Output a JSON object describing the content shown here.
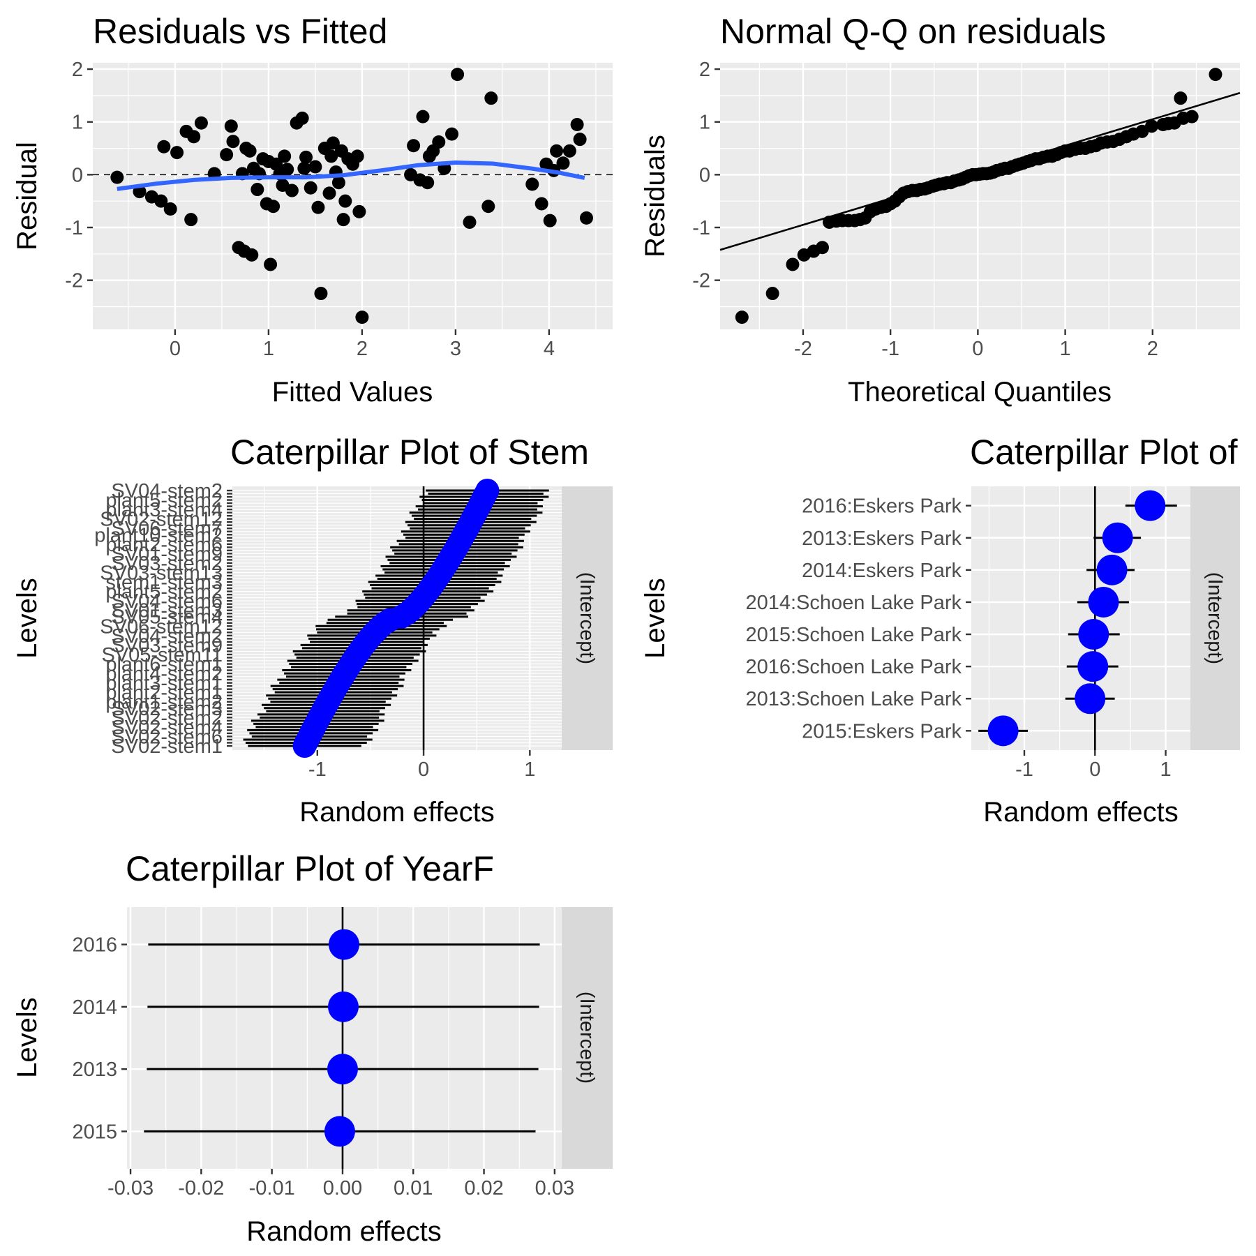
{
  "chart_data": [
    {
      "id": "residuals",
      "type": "scatter",
      "title": "Residuals vs Fitted",
      "xlabel": "Fitted Values",
      "ylabel": "Residual",
      "xlim": [
        -0.88,
        4.68
      ],
      "ylim": [
        -2.93,
        2.12
      ],
      "xticks": [
        0,
        1,
        2,
        3,
        4
      ],
      "xtick_labels": [
        "0",
        "1",
        "2",
        "3",
        "4"
      ],
      "yticks": [
        -2,
        -1,
        0,
        1,
        2
      ],
      "ytick_labels": [
        "-2",
        "-1",
        "0",
        "1",
        "2"
      ],
      "grid": true,
      "reference_line": {
        "y": 0,
        "style": "dashed",
        "color": "#000000"
      },
      "smooth": {
        "color": "#3366FF",
        "x": [
          -0.62,
          -0.2,
          0.2,
          0.6,
          1.0,
          1.4,
          1.8,
          2.2,
          2.6,
          3.0,
          3.4,
          3.8,
          4.1,
          4.38
        ],
        "y": [
          -0.27,
          -0.17,
          -0.1,
          -0.06,
          -0.05,
          -0.05,
          -0.01,
          0.08,
          0.18,
          0.23,
          0.21,
          0.12,
          0.04,
          -0.06
        ]
      },
      "points": [
        [
          -0.62,
          -0.05
        ],
        [
          -0.38,
          -0.32
        ],
        [
          -0.25,
          -0.42
        ],
        [
          -0.15,
          -0.5
        ],
        [
          -0.12,
          0.53
        ],
        [
          -0.05,
          -0.65
        ],
        [
          0.02,
          0.42
        ],
        [
          0.12,
          0.82
        ],
        [
          0.17,
          -0.85
        ],
        [
          0.2,
          0.72
        ],
        [
          0.28,
          0.98
        ],
        [
          0.42,
          0.02
        ],
        [
          0.55,
          0.38
        ],
        [
          0.6,
          0.92
        ],
        [
          0.62,
          0.63
        ],
        [
          0.68,
          -1.38
        ],
        [
          0.72,
          0.02
        ],
        [
          0.74,
          -1.45
        ],
        [
          0.76,
          0.5
        ],
        [
          0.8,
          0.45
        ],
        [
          0.82,
          -1.52
        ],
        [
          0.84,
          0.12
        ],
        [
          0.88,
          -0.28
        ],
        [
          0.9,
          0.02
        ],
        [
          0.94,
          0.3
        ],
        [
          0.98,
          -0.55
        ],
        [
          1.0,
          0.25
        ],
        [
          1.02,
          -1.7
        ],
        [
          1.05,
          -0.6
        ],
        [
          1.08,
          0.2
        ],
        [
          1.12,
          0.02
        ],
        [
          1.15,
          -0.2
        ],
        [
          1.17,
          0.35
        ],
        [
          1.2,
          0.1
        ],
        [
          1.25,
          -0.3
        ],
        [
          1.3,
          0.98
        ],
        [
          1.36,
          1.07
        ],
        [
          1.38,
          0.12
        ],
        [
          1.4,
          0.33
        ],
        [
          1.45,
          -0.25
        ],
        [
          1.5,
          0.15
        ],
        [
          1.53,
          -0.62
        ],
        [
          1.56,
          -2.25
        ],
        [
          1.6,
          0.5
        ],
        [
          1.65,
          -0.35
        ],
        [
          1.67,
          0.35
        ],
        [
          1.69,
          0.6
        ],
        [
          1.72,
          0.05
        ],
        [
          1.75,
          -0.15
        ],
        [
          1.78,
          0.45
        ],
        [
          1.8,
          -0.85
        ],
        [
          1.82,
          -0.5
        ],
        [
          1.85,
          0.3
        ],
        [
          1.9,
          0.2
        ],
        [
          1.95,
          0.35
        ],
        [
          1.97,
          -0.7
        ],
        [
          2.0,
          -2.7
        ],
        [
          2.52,
          0.0
        ],
        [
          2.55,
          0.55
        ],
        [
          2.62,
          -0.1
        ],
        [
          2.65,
          1.1
        ],
        [
          2.7,
          -0.15
        ],
        [
          2.72,
          0.35
        ],
        [
          2.76,
          0.45
        ],
        [
          2.82,
          0.62
        ],
        [
          2.88,
          0.12
        ],
        [
          2.96,
          0.77
        ],
        [
          3.02,
          1.9
        ],
        [
          3.15,
          -0.9
        ],
        [
          3.35,
          -0.6
        ],
        [
          3.38,
          1.45
        ],
        [
          3.82,
          -0.18
        ],
        [
          3.92,
          -0.55
        ],
        [
          3.97,
          0.2
        ],
        [
          4.01,
          -0.87
        ],
        [
          4.05,
          0.08
        ],
        [
          4.08,
          0.45
        ],
        [
          4.15,
          0.22
        ],
        [
          4.22,
          0.45
        ],
        [
          4.3,
          0.95
        ],
        [
          4.33,
          0.67
        ],
        [
          4.4,
          -0.82
        ]
      ]
    },
    {
      "id": "qq",
      "type": "scatter",
      "title": "Normal Q-Q on residuals",
      "xlabel": "Theoretical Quantiles",
      "ylabel": "Residuals",
      "xlim": [
        -2.95,
        3.0
      ],
      "ylim": [
        -2.93,
        2.12
      ],
      "xticks": [
        -2,
        -1,
        0,
        1,
        2
      ],
      "xtick_labels": [
        "-2",
        "-1",
        "0",
        "1",
        "2"
      ],
      "yticks": [
        -2,
        -1,
        0,
        1,
        2
      ],
      "ytick_labels": [
        "-2",
        "-1",
        "0",
        "1",
        "2"
      ],
      "grid": true,
      "reference_line": {
        "slope": 0.5,
        "intercept": 0.05,
        "color": "#000000"
      },
      "points": [
        [
          -2.7,
          -2.7
        ],
        [
          -2.35,
          -2.25
        ],
        [
          -2.12,
          -1.7
        ],
        [
          -1.99,
          -1.52
        ],
        [
          -1.88,
          -1.45
        ],
        [
          -1.78,
          -1.38
        ],
        [
          -1.7,
          -0.9
        ],
        [
          -1.62,
          -0.88
        ],
        [
          -1.55,
          -0.87
        ],
        [
          -1.48,
          -0.87
        ],
        [
          -1.41,
          -0.87
        ],
        [
          -1.35,
          -0.85
        ],
        [
          -1.29,
          -0.82
        ],
        [
          -1.23,
          -0.7
        ],
        [
          -1.17,
          -0.65
        ],
        [
          -1.11,
          -0.62
        ],
        [
          -1.05,
          -0.6
        ],
        [
          -1.0,
          -0.55
        ],
        [
          -0.95,
          -0.5
        ],
        [
          -0.9,
          -0.42
        ],
        [
          -0.85,
          -0.35
        ],
        [
          -0.8,
          -0.32
        ],
        [
          -0.75,
          -0.3
        ],
        [
          -0.7,
          -0.3
        ],
        [
          -0.66,
          -0.28
        ],
        [
          -0.61,
          -0.27
        ],
        [
          -0.57,
          -0.25
        ],
        [
          -0.52,
          -0.22
        ],
        [
          -0.48,
          -0.2
        ],
        [
          -0.44,
          -0.18
        ],
        [
          -0.39,
          -0.17
        ],
        [
          -0.35,
          -0.15
        ],
        [
          -0.31,
          -0.15
        ],
        [
          -0.27,
          -0.12
        ],
        [
          -0.22,
          -0.1
        ],
        [
          -0.18,
          -0.08
        ],
        [
          -0.14,
          -0.05
        ],
        [
          -0.1,
          -0.02
        ],
        [
          -0.06,
          0.0
        ],
        [
          -0.02,
          0.0
        ],
        [
          0.02,
          0.01
        ],
        [
          0.06,
          0.02
        ],
        [
          0.1,
          0.02
        ],
        [
          0.14,
          0.03
        ],
        [
          0.18,
          0.05
        ],
        [
          0.22,
          0.08
        ],
        [
          0.27,
          0.1
        ],
        [
          0.31,
          0.12
        ],
        [
          0.35,
          0.12
        ],
        [
          0.39,
          0.15
        ],
        [
          0.44,
          0.18
        ],
        [
          0.48,
          0.2
        ],
        [
          0.52,
          0.22
        ],
        [
          0.57,
          0.25
        ],
        [
          0.61,
          0.27
        ],
        [
          0.66,
          0.3
        ],
        [
          0.7,
          0.3
        ],
        [
          0.75,
          0.33
        ],
        [
          0.8,
          0.35
        ],
        [
          0.85,
          0.35
        ],
        [
          0.9,
          0.38
        ],
        [
          0.95,
          0.42
        ],
        [
          1.0,
          0.45
        ],
        [
          1.05,
          0.45
        ],
        [
          1.11,
          0.48
        ],
        [
          1.17,
          0.5
        ],
        [
          1.23,
          0.5
        ],
        [
          1.29,
          0.53
        ],
        [
          1.35,
          0.55
        ],
        [
          1.41,
          0.6
        ],
        [
          1.48,
          0.62
        ],
        [
          1.55,
          0.63
        ],
        [
          1.62,
          0.67
        ],
        [
          1.7,
          0.72
        ],
        [
          1.78,
          0.77
        ],
        [
          1.88,
          0.82
        ],
        [
          1.99,
          0.92
        ],
        [
          2.12,
          0.95
        ],
        [
          2.18,
          0.97
        ],
        [
          2.25,
          0.98
        ],
        [
          2.35,
          1.07
        ],
        [
          2.45,
          1.1
        ],
        [
          2.32,
          1.45
        ],
        [
          2.72,
          1.9
        ]
      ]
    },
    {
      "id": "cat-stem",
      "type": "scatter",
      "title": "Caterpillar Plot of  Stem",
      "xlabel": "Random effects",
      "ylabel": "Levels",
      "strip_label": "(Intercept)",
      "xlim": [
        -1.8,
        1.3
      ],
      "xticks": [
        -1,
        0,
        1
      ],
      "xtick_labels": [
        "-1",
        "0",
        "1"
      ],
      "zero_line": true,
      "n_levels": 82,
      "estimate_range": [
        -1.12,
        0.6
      ],
      "interval_half_width": 0.58,
      "y_tick_labels_visible": [
        "SV02-stem1",
        "SV02-stem6",
        "SV02-stem4",
        "SV02-stem2",
        "SV02-stem3",
        "plant1-stem2",
        "plant2-stem1",
        "plant3-stem1",
        "plant4-stem2",
        "plant6-stem1",
        "SV05-stem11",
        "SV03-stem9",
        "SV04-stem2",
        "SV06-stem12",
        "SV05-stem4",
        "SV01-stem3",
        "SV04-stem6",
        "plant5-stem2",
        "stem1-stem3",
        "SV03-stem13",
        "SV03-stem2",
        "SV01-stem9",
        "plant2-stem6",
        "plant10-stem2",
        "SV06-stem7",
        "SV02-stem12",
        "plant3-stem4",
        "plant5-stem2",
        "SV04-stem2"
      ]
    },
    {
      "id": "cat-site",
      "type": "scatter",
      "title": "Caterpillar Plot of",
      "xlabel": "Random effects",
      "ylabel": "Levels",
      "strip_label": "(Intercept)",
      "xlim": [
        -1.75,
        1.35
      ],
      "xticks": [
        -1,
        0,
        1
      ],
      "xtick_labels": [
        "-1",
        "0",
        "1"
      ],
      "zero_line": true,
      "levels": [
        {
          "label": "2016:Eskers Park",
          "estimate": 0.78,
          "lo": 0.43,
          "hi": 1.16
        },
        {
          "label": "2013:Eskers Park",
          "estimate": 0.32,
          "lo": -0.02,
          "hi": 0.65
        },
        {
          "label": "2014:Eskers Park",
          "estimate": 0.24,
          "lo": -0.12,
          "hi": 0.56
        },
        {
          "label": "2014:Schoen Lake Park",
          "estimate": 0.12,
          "lo": -0.25,
          "hi": 0.48
        },
        {
          "label": "2015:Schoen Lake Park",
          "estimate": -0.02,
          "lo": -0.38,
          "hi": 0.35
        },
        {
          "label": "2016:Schoen Lake Park",
          "estimate": -0.03,
          "lo": -0.4,
          "hi": 0.33
        },
        {
          "label": "2013:Schoen Lake Park",
          "estimate": -0.07,
          "lo": -0.42,
          "hi": 0.28
        },
        {
          "label": "2015:Eskers Park",
          "estimate": -1.3,
          "lo": -1.65,
          "hi": -0.95
        }
      ]
    },
    {
      "id": "cat-year",
      "type": "scatter",
      "title": "Caterpillar Plot of  YearF",
      "xlabel": "Random effects",
      "ylabel": "Levels",
      "strip_label": "(Intercept)",
      "xlim": [
        -0.0305,
        0.031
      ],
      "xticks": [
        -0.03,
        -0.02,
        -0.01,
        0.0,
        0.01,
        0.02,
        0.03
      ],
      "xtick_labels": [
        "-0.03",
        "-0.02",
        "-0.01",
        "0.00",
        "0.01",
        "0.02",
        "0.03"
      ],
      "zero_line": true,
      "levels": [
        {
          "label": "2016",
          "estimate": 0.0002,
          "lo": -0.0275,
          "hi": 0.0279
        },
        {
          "label": "2014",
          "estimate": 0.0001,
          "lo": -0.0276,
          "hi": 0.0278
        },
        {
          "label": "2013",
          "estimate": 0.0,
          "lo": -0.0277,
          "hi": 0.0277
        },
        {
          "label": "2015",
          "estimate": -0.0004,
          "lo": -0.0281,
          "hi": 0.0273
        }
      ]
    }
  ]
}
